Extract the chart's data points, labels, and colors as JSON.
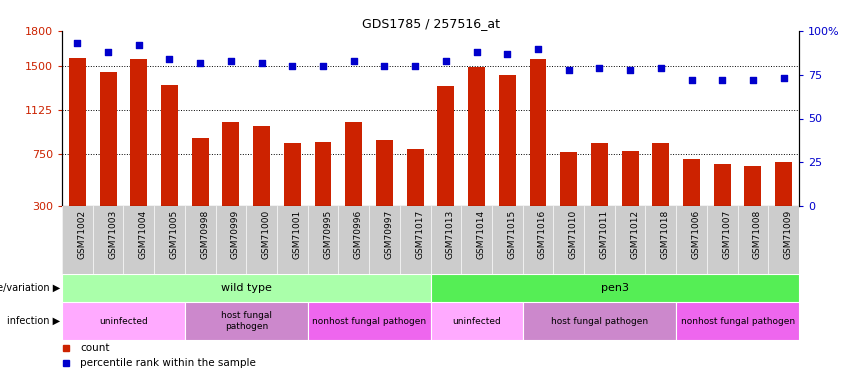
{
  "title": "GDS1785 / 257516_at",
  "samples": [
    "GSM71002",
    "GSM71003",
    "GSM71004",
    "GSM71005",
    "GSM70998",
    "GSM70999",
    "GSM71000",
    "GSM71001",
    "GSM70995",
    "GSM70996",
    "GSM70997",
    "GSM71017",
    "GSM71013",
    "GSM71014",
    "GSM71015",
    "GSM71016",
    "GSM71010",
    "GSM71011",
    "GSM71012",
    "GSM71018",
    "GSM71006",
    "GSM71007",
    "GSM71008",
    "GSM71009"
  ],
  "counts": [
    1570,
    1450,
    1560,
    1340,
    880,
    1020,
    990,
    840,
    850,
    1020,
    870,
    790,
    1330,
    1490,
    1420,
    1560,
    760,
    840,
    770,
    840,
    700,
    660,
    640,
    680
  ],
  "percentiles": [
    93,
    88,
    92,
    84,
    82,
    83,
    82,
    80,
    80,
    83,
    80,
    80,
    83,
    88,
    87,
    90,
    78,
    79,
    78,
    79,
    72,
    72,
    72,
    73
  ],
  "ylim_left": [
    300,
    1800
  ],
  "ylim_right": [
    0,
    100
  ],
  "yticks_left": [
    300,
    750,
    1125,
    1500,
    1800
  ],
  "ytick_labels_left": [
    "300",
    "750",
    "1125",
    "1500",
    "1800"
  ],
  "yticks_right": [
    0,
    25,
    50,
    75,
    100
  ],
  "ytick_labels_right": [
    "0",
    "25",
    "50",
    "75",
    "100%"
  ],
  "bar_color": "#cc2200",
  "dot_color": "#0000cc",
  "hline_values": [
    750,
    1125,
    1500
  ],
  "genotype_groups": [
    {
      "label": "wild type",
      "start": 0,
      "end": 12,
      "color": "#aaffaa"
    },
    {
      "label": "pen3",
      "start": 12,
      "end": 24,
      "color": "#55ee55"
    }
  ],
  "infection_groups": [
    {
      "label": "uninfected",
      "start": 0,
      "end": 4,
      "color": "#ffaaff"
    },
    {
      "label": "host fungal\npathogen",
      "start": 4,
      "end": 8,
      "color": "#cc88cc"
    },
    {
      "label": "nonhost fungal pathogen",
      "start": 8,
      "end": 12,
      "color": "#ee66ee"
    },
    {
      "label": "uninfected",
      "start": 12,
      "end": 15,
      "color": "#ffaaff"
    },
    {
      "label": "host fungal pathogen",
      "start": 15,
      "end": 20,
      "color": "#cc88cc"
    },
    {
      "label": "nonhost fungal pathogen",
      "start": 20,
      "end": 24,
      "color": "#ee66ee"
    }
  ],
  "legend_count_color": "#cc2200",
  "legend_dot_color": "#0000cc"
}
